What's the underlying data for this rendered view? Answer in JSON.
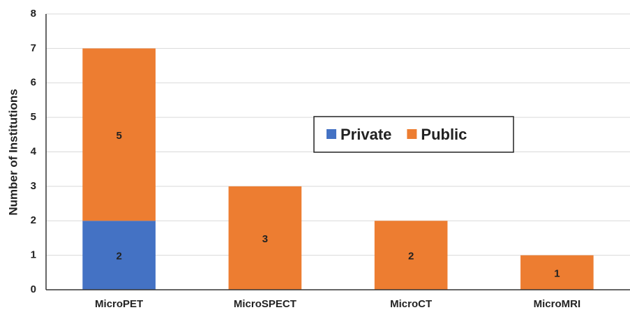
{
  "chart_data": {
    "type": "stacked_bar",
    "y_label": "Number of Institutions",
    "categories": [
      "MicroPET",
      "MicroSPECT",
      "MicroCT",
      "MicroMRI"
    ],
    "series": [
      {
        "name": "Private",
        "color": "#4472c4",
        "values": [
          2,
          0,
          0,
          0
        ]
      },
      {
        "name": "Public",
        "color": "#ed7d31",
        "values": [
          5,
          3,
          2,
          1
        ]
      }
    ],
    "ylim": [
      0,
      8
    ],
    "yticks": [
      0,
      1,
      2,
      3,
      4,
      5,
      6,
      7,
      8
    ],
    "grid": true,
    "legend": "center"
  }
}
